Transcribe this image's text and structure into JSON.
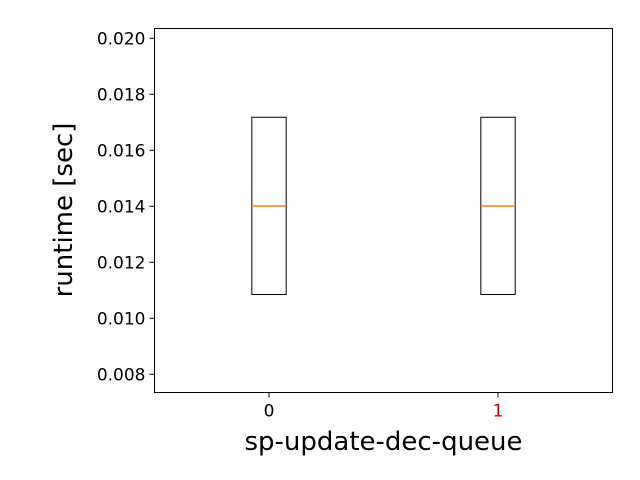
{
  "chart_data": {
    "type": "box",
    "title": "",
    "xlabel": "sp-update-dec-queue",
    "ylabel": "runtime [sec]",
    "categories": [
      "0",
      "1"
    ],
    "category_label_colors": [
      "#000000",
      "#cc0000"
    ],
    "boxes": [
      {
        "category": "0",
        "q1": 0.01085,
        "median": 0.01401,
        "q3": 0.01718,
        "whisker_low": 0.01085,
        "whisker_high": 0.01718
      },
      {
        "category": "1",
        "q1": 0.01085,
        "median": 0.01401,
        "q3": 0.01718,
        "whisker_low": 0.01085,
        "whisker_high": 0.01718
      }
    ],
    "ylim": [
      0.00735,
      0.02035
    ],
    "yticks": [
      0.008,
      0.01,
      0.012,
      0.014,
      0.016,
      0.018,
      0.02
    ],
    "ytick_labels": [
      "0.008",
      "0.010",
      "0.012",
      "0.014",
      "0.016",
      "0.018",
      "0.020"
    ],
    "xlim": [
      -0.5,
      1.5
    ],
    "grid": false,
    "colors": {
      "box_edge": "#000000",
      "median": "#ff7f0e",
      "axes": "#000000"
    }
  }
}
